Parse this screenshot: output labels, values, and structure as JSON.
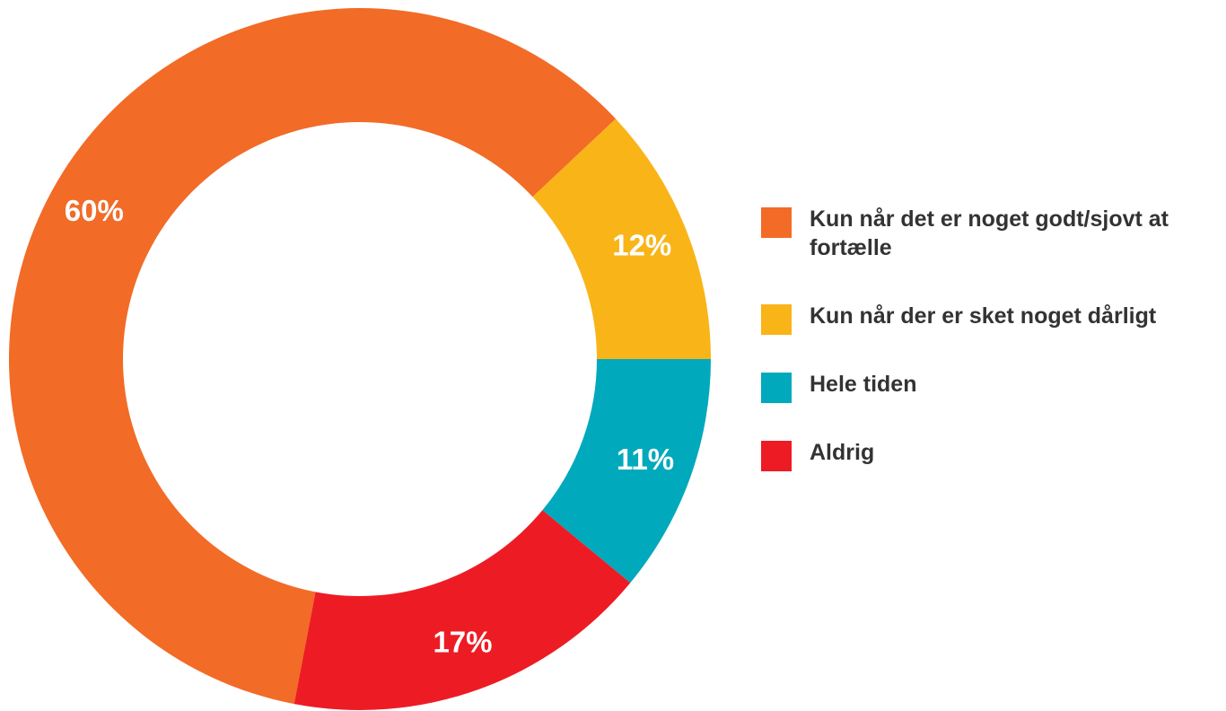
{
  "chart_data": {
    "type": "donut",
    "categories": [
      "Kun når det er noget godt/sjovt at fortælle",
      "Kun når der er sket noget dårligt",
      "Hele tiden",
      "Aldrig"
    ],
    "values": [
      60,
      12,
      11,
      17
    ],
    "value_labels": [
      "60%",
      "12%",
      "11%",
      "17%"
    ],
    "colors": [
      "#f26b27",
      "#f9b418",
      "#00a9bb",
      "#ed1c24"
    ],
    "legend": "right"
  }
}
